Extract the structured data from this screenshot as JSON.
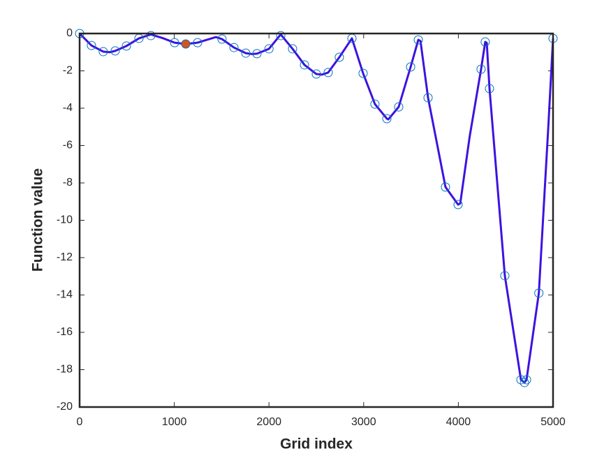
{
  "chart_data": {
    "type": "line",
    "xlabel": "Grid index",
    "ylabel": "Function value",
    "xlim": [
      0,
      5000
    ],
    "xticks": [
      0,
      1000,
      2000,
      3000,
      4000,
      5000
    ],
    "ylim": [
      -20,
      0
    ],
    "yticks": [
      -20,
      -18,
      -16,
      -14,
      -12,
      -10,
      -8,
      -6,
      -4,
      -2,
      0
    ],
    "grid": false,
    "series": [
      {
        "mark": "line",
        "color": "#3d12e0",
        "x": [
          0,
          125,
          250,
          320,
          376,
          494,
          627,
          752,
          880,
          1003,
          1121,
          1246,
          1440,
          1504,
          1630,
          1755,
          1820,
          1873,
          2000,
          2124,
          2249,
          2375,
          2500,
          2560,
          2625,
          2743,
          2876,
          2994,
          3119,
          3245,
          3260,
          3370,
          3496,
          3577,
          3600,
          3680,
          3864,
          3997,
          4020,
          4120,
          4240,
          4284,
          4300,
          4329,
          4491,
          4661,
          4698,
          4720,
          4850,
          4950,
          5000
        ],
        "values": [
          0,
          -0.64,
          -0.97,
          -1.0,
          -0.93,
          -0.67,
          -0.26,
          -0.05,
          -0.25,
          -0.49,
          -0.56,
          -0.49,
          -0.19,
          -0.3,
          -0.75,
          -1.05,
          -1.1,
          -1.08,
          -0.82,
          -0.05,
          -0.82,
          -1.68,
          -2.17,
          -2.2,
          -2.09,
          -1.27,
          -0.26,
          -2.13,
          -3.78,
          -4.56,
          -4.6,
          -3.93,
          -1.79,
          -0.34,
          -0.4,
          -3.44,
          -8.22,
          -9.16,
          -9.1,
          -5.5,
          -1.91,
          -0.45,
          -0.5,
          -2.95,
          -12.97,
          -18.54,
          -18.69,
          -18.54,
          -13.9,
          -5.0,
          -0.26
        ]
      },
      {
        "mark": "circle",
        "filled": false,
        "color": "#0072bd",
        "x": [
          0,
          125,
          250,
          376,
          494,
          627,
          752,
          1003,
          1246,
          1504,
          1630,
          1755,
          1873,
          2000,
          2124,
          2249,
          2375,
          2500,
          2625,
          2743,
          2876,
          2994,
          3119,
          3245,
          3370,
          3496,
          3577,
          3680,
          3864,
          3997,
          4240,
          4284,
          4329,
          4491,
          4661,
          4698,
          4720,
          4850,
          5000
        ],
        "values": [
          0,
          -0.64,
          -0.97,
          -0.93,
          -0.67,
          -0.26,
          -0.11,
          -0.49,
          -0.49,
          -0.3,
          -0.75,
          -1.05,
          -1.08,
          -0.82,
          -0.11,
          -0.82,
          -1.68,
          -2.17,
          -2.09,
          -1.27,
          -0.26,
          -2.13,
          -3.78,
          -4.56,
          -3.93,
          -1.79,
          -0.34,
          -3.44,
          -8.22,
          -9.16,
          -1.91,
          -0.45,
          -2.95,
          -12.97,
          -18.54,
          -18.69,
          -18.54,
          -13.9,
          -0.26
        ]
      },
      {
        "mark": "circle",
        "filled": true,
        "color": "#d95319",
        "x": [
          1121
        ],
        "values": [
          -0.56
        ]
      }
    ]
  }
}
